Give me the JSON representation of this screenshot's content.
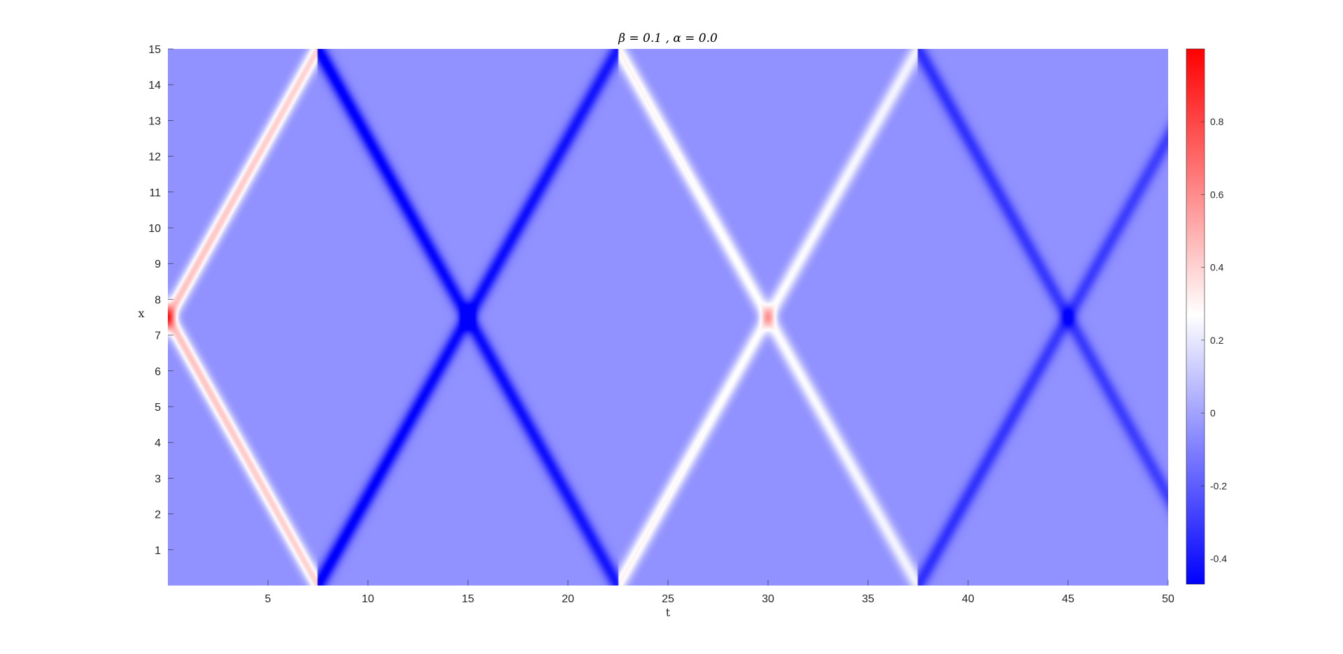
{
  "chart_data": {
    "type": "heatmap",
    "title": "β = 0.1 , α = 0.0",
    "xlabel": "t",
    "ylabel": "x",
    "xlim": [
      0,
      50
    ],
    "ylim": [
      0,
      15
    ],
    "xticks": [
      5,
      10,
      15,
      20,
      25,
      30,
      35,
      40,
      45,
      50
    ],
    "yticks": [
      1,
      2,
      3,
      4,
      5,
      6,
      7,
      8,
      9,
      10,
      11,
      12,
      13,
      14,
      15
    ],
    "colorbar": {
      "range": [
        -0.47,
        1.0
      ],
      "ticks": [
        -0.4,
        -0.2,
        0,
        0.2,
        0.4,
        0.6,
        0.8
      ],
      "colormap": [
        "#0000ff",
        "#ffffff",
        "#ff0000"
      ],
      "center_value": 0.27
    },
    "field_description": "Gaussian pulse at x=7.5, t=0 splitting into left and right travelling waves (speed ~1) reflecting at x=0 and x=15; sign flips at each wall and amplitude decays over time",
    "wave": {
      "center_x": 7.5,
      "speed": 1.0,
      "domain_length": 15,
      "initial_amplitude": 0.5,
      "pulse_width": 0.3,
      "background_value": -0.05,
      "reflection_sign": -1,
      "decay_rate": 0.015
    },
    "crossing_points": [
      {
        "t": 0,
        "x": 7.5,
        "value": 1.0
      },
      {
        "t": 15,
        "x": 7.5,
        "value": -0.47
      },
      {
        "t": 30,
        "x": 7.5,
        "value": 0.27
      },
      {
        "t": 45,
        "x": 7.5,
        "value": -0.1
      }
    ]
  }
}
